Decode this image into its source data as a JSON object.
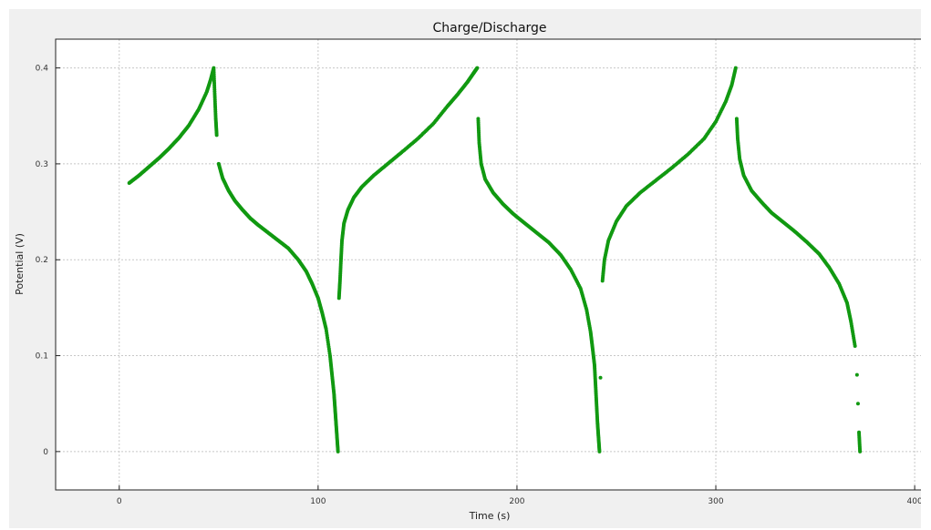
{
  "chart_data": {
    "type": "scatter",
    "title": "Charge/Discharge",
    "xlabel": "Time (s)",
    "ylabel": "Potential (V)",
    "xlim": [
      -32,
      405
    ],
    "ylim": [
      -0.04,
      0.43
    ],
    "xticks": [
      0,
      100,
      200,
      300,
      400
    ],
    "yticks": [
      0,
      0.1,
      0.2,
      0.3,
      0.4
    ],
    "xtick_labels": [
      "0",
      "100",
      "200",
      "300",
      "400"
    ],
    "ytick_labels": [
      "0",
      "0.1",
      "0.2",
      "0.3",
      "0.4"
    ],
    "grid": true,
    "legend": "none",
    "series": [
      {
        "color": "#119911",
        "x": [
          5,
          10,
          15,
          20,
          25,
          30,
          35,
          40,
          44,
          46,
          47.5,
          48,
          48.5,
          49,
          50,
          52,
          55,
          58,
          62,
          66,
          70,
          75,
          80,
          85,
          90,
          94,
          97,
          100,
          102,
          104,
          106,
          107,
          108,
          108.5,
          109,
          109.5,
          110,
          110.5,
          111,
          111.5,
          112,
          113,
          115,
          118,
          122,
          128,
          135,
          142,
          150,
          158,
          165,
          170,
          175,
          178,
          180,
          180.5,
          181,
          182,
          184,
          188,
          193,
          198,
          204,
          210,
          216,
          222,
          227,
          232,
          235,
          237,
          238,
          239,
          239.5,
          240,
          240.5,
          241,
          241.5,
          242,
          243,
          244,
          246,
          250,
          255,
          262,
          270,
          278,
          286,
          294,
          300,
          305,
          308,
          310,
          310.5,
          311,
          312,
          314,
          318,
          323,
          328,
          334,
          340,
          346,
          352,
          357,
          362,
          366,
          368,
          370,
          371,
          371.5,
          372,
          372.5
        ],
        "y": [
          0.28,
          0.288,
          0.297,
          0.306,
          0.316,
          0.327,
          0.34,
          0.357,
          0.375,
          0.388,
          0.4,
          0.373,
          0.348,
          0.33,
          0.3,
          0.285,
          0.272,
          0.262,
          0.252,
          0.243,
          0.236,
          0.228,
          0.22,
          0.212,
          0.2,
          0.188,
          0.175,
          0.16,
          0.145,
          0.128,
          0.1,
          0.08,
          0.06,
          0.045,
          0.03,
          0.015,
          0.0,
          0.16,
          0.178,
          0.2,
          0.22,
          0.238,
          0.252,
          0.265,
          0.276,
          0.288,
          0.3,
          0.312,
          0.326,
          0.342,
          0.36,
          0.372,
          0.385,
          0.394,
          0.4,
          0.347,
          0.322,
          0.3,
          0.284,
          0.27,
          0.258,
          0.248,
          0.238,
          0.228,
          0.218,
          0.205,
          0.19,
          0.17,
          0.148,
          0.125,
          0.108,
          0.09,
          0.07,
          0.05,
          0.03,
          0.015,
          0.0,
          0.077,
          0.178,
          0.2,
          0.22,
          0.24,
          0.256,
          0.27,
          0.283,
          0.296,
          0.31,
          0.326,
          0.344,
          0.365,
          0.382,
          0.4,
          0.347,
          0.326,
          0.305,
          0.288,
          0.272,
          0.26,
          0.249,
          0.239,
          0.229,
          0.218,
          0.206,
          0.192,
          0.175,
          0.155,
          0.135,
          0.11,
          0.08,
          0.05,
          0.02,
          0.0
        ]
      }
    ]
  }
}
